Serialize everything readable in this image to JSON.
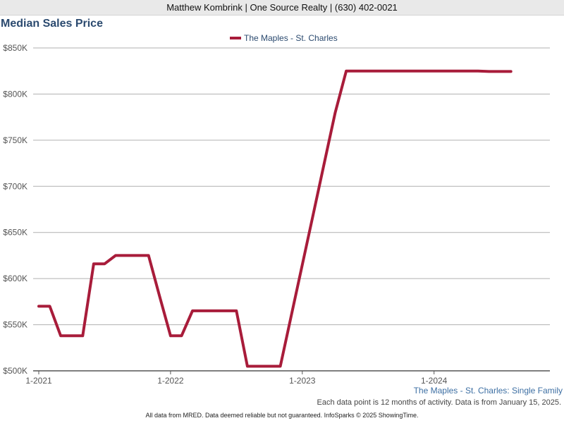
{
  "header": {
    "agent_line": "Matthew Kombrink | One Source Realty | (630) 402-0021"
  },
  "colors": {
    "series": "#a81c3a",
    "grid": "#b0b0b0",
    "axis": "#555555",
    "title": "#2b4a6f"
  },
  "chart_data": {
    "type": "line",
    "title": "Median Sales Price",
    "legend": {
      "position": "top-center",
      "entries": [
        "The Maples - St. Charles"
      ]
    },
    "yticks": [
      "$500K",
      "$550K",
      "$600K",
      "$650K",
      "$700K",
      "$750K",
      "$800K",
      "$850K"
    ],
    "ytick_values": [
      500000,
      550000,
      600000,
      650000,
      700000,
      750000,
      800000,
      850000
    ],
    "xticks": [
      "1-2021",
      "1-2022",
      "1-2023",
      "1-2024"
    ],
    "xtick_values": [
      "2021-01",
      "2022-01",
      "2023-01",
      "2024-01"
    ],
    "ylim": [
      500000,
      850000
    ],
    "xlim": [
      "2021-01",
      "2024-12"
    ],
    "grid": true,
    "series": [
      {
        "name": "The Maples - St. Charles",
        "x": [
          "2021-01",
          "2021-02",
          "2021-03",
          "2021-04",
          "2021-05",
          "2021-06",
          "2021-07",
          "2021-08",
          "2021-09",
          "2021-10",
          "2021-11",
          "2021-12",
          "2022-01",
          "2022-02",
          "2022-03",
          "2022-04",
          "2022-05",
          "2022-06",
          "2022-07",
          "2022-08",
          "2022-09",
          "2022-10",
          "2022-11",
          "2022-12",
          "2023-01",
          "2023-02",
          "2023-03",
          "2023-04",
          "2023-05",
          "2023-06",
          "2023-07",
          "2023-08",
          "2023-09",
          "2023-10",
          "2023-11",
          "2023-12",
          "2024-01",
          "2024-02",
          "2024-03",
          "2024-04",
          "2024-05",
          "2024-06",
          "2024-07",
          "2024-08"
        ],
        "values": [
          570000,
          570000,
          538000,
          538000,
          538000,
          616000,
          616000,
          625000,
          625000,
          625000,
          625000,
          581000,
          538000,
          538000,
          565000,
          565000,
          565000,
          565000,
          565000,
          505000,
          505000,
          505000,
          505000,
          560000,
          615000,
          670000,
          725000,
          780000,
          825000,
          825000,
          825000,
          825000,
          825000,
          825000,
          825000,
          825000,
          825000,
          825000,
          825000,
          825000,
          825000,
          824500,
          824500,
          824500
        ]
      }
    ]
  },
  "series_caption": "The Maples - St. Charles: Single Family",
  "note": "Each data point is 12 months of activity. Data is from January 15, 2025.",
  "footer": "All data from MRED. Data deemed reliable but not guaranteed. InfoSparks © 2025 ShowingTime."
}
